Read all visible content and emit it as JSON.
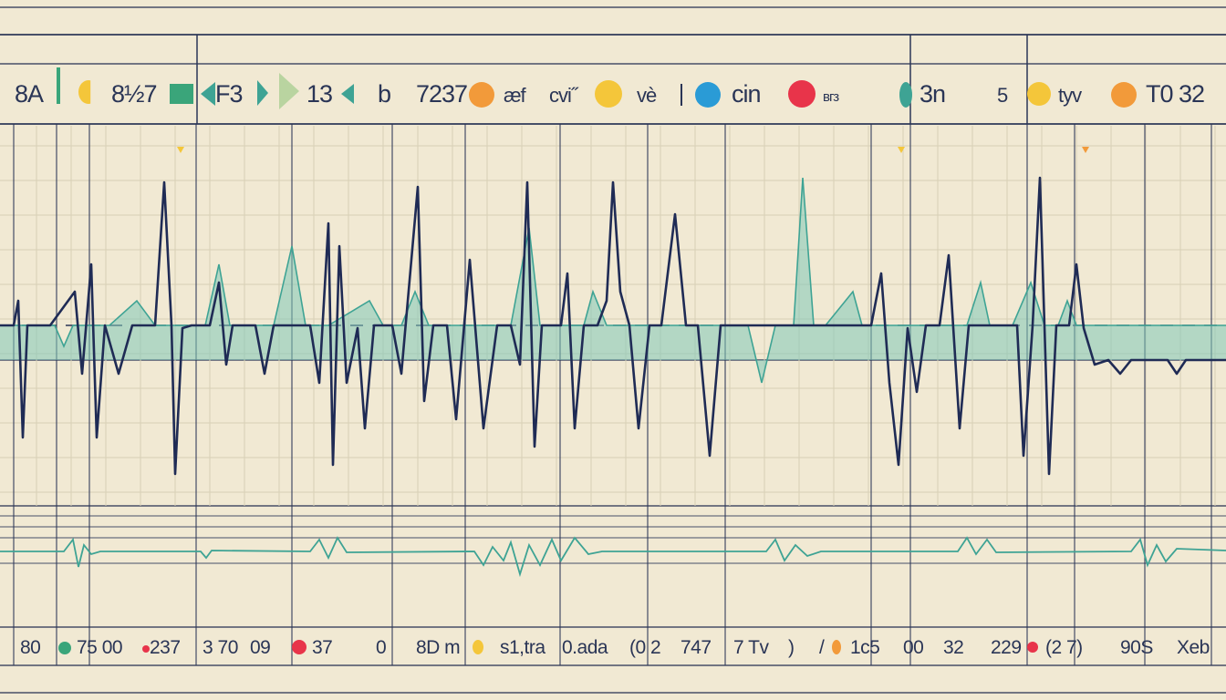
{
  "top_labels": [
    "8A",
    "8½7",
    "F3",
    "13",
    "b",
    "7237",
    "æf",
    "cvi˝",
    "vè",
    "cin",
    "вгз",
    "3n",
    "5",
    "tyv",
    "T0 32"
  ],
  "bottom_labels": [
    "80",
    "75 00",
    "237",
    "3 70",
    "09",
    "37",
    "0",
    "8D m",
    "s1,tra",
    "0.ada",
    "(0 2",
    "747",
    "7 Tv",
    ")",
    "/",
    "1c5",
    "00",
    "32",
    "229",
    "(2 7)",
    "90S",
    "Xeb"
  ],
  "colors": {
    "background": "#f1e9d3",
    "grid": "#2a3556",
    "main_trace": "#1f2b55",
    "teal_trace": "#3ea394",
    "teal_fill": "#7fc8b8",
    "orange": "#f29a3a",
    "yellow": "#f4c63a",
    "red": "#e8344a",
    "blue": "#2a9bd6",
    "green": "#3aa57a"
  },
  "icons": [
    "orange-dot-icon",
    "yellow-dot-icon",
    "red-dot-icon",
    "blue-dot-icon",
    "green-square-icon",
    "teal-arrow-icon"
  ]
}
